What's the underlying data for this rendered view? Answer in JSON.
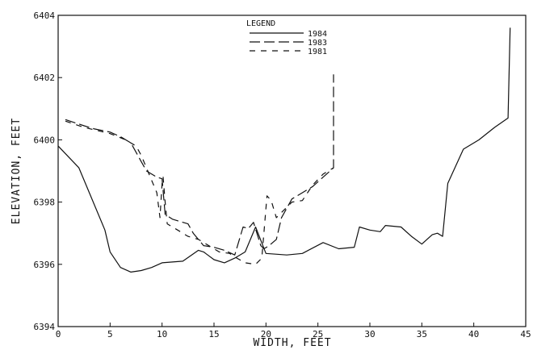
{
  "chart_data": {
    "type": "line",
    "title": "",
    "xlabel": "WIDTH, FEET",
    "ylabel": "ELEVATION, FEET",
    "xlim": [
      0,
      45
    ],
    "ylim": [
      6394,
      6404
    ],
    "xticks": [
      0,
      5,
      10,
      15,
      20,
      25,
      30,
      35,
      40,
      45
    ],
    "yticks": [
      6394,
      6396,
      6398,
      6400,
      6402,
      6404
    ],
    "grid": false,
    "legend": {
      "title": "LEGEND",
      "placement": "top-center"
    },
    "series": [
      {
        "name": "1984",
        "dash": "solid",
        "points": [
          [
            0.0,
            6399.8
          ],
          [
            2.0,
            6399.1
          ],
          [
            3.0,
            6398.3
          ],
          [
            4.5,
            6397.1
          ],
          [
            5.0,
            6396.4
          ],
          [
            6.0,
            6395.9
          ],
          [
            7.0,
            6395.75
          ],
          [
            8.0,
            6395.8
          ],
          [
            9.0,
            6395.9
          ],
          [
            10.0,
            6396.05
          ],
          [
            12.0,
            6396.1
          ],
          [
            13.5,
            6396.45
          ],
          [
            14.0,
            6396.4
          ],
          [
            15.0,
            6396.15
          ],
          [
            16.0,
            6396.05
          ],
          [
            17.0,
            6396.2
          ],
          [
            18.0,
            6396.4
          ],
          [
            19.0,
            6397.2
          ],
          [
            20.0,
            6396.35
          ],
          [
            22.0,
            6396.3
          ],
          [
            23.5,
            6396.35
          ],
          [
            25.5,
            6396.7
          ],
          [
            27.0,
            6396.5
          ],
          [
            28.5,
            6396.55
          ],
          [
            29.0,
            6397.2
          ],
          [
            30.0,
            6397.1
          ],
          [
            31.0,
            6397.05
          ],
          [
            31.5,
            6397.25
          ],
          [
            33.0,
            6397.2
          ],
          [
            34.0,
            6396.9
          ],
          [
            35.0,
            6396.65
          ],
          [
            36.0,
            6396.95
          ],
          [
            36.5,
            6397.0
          ],
          [
            37.0,
            6396.9
          ],
          [
            37.5,
            6398.6
          ],
          [
            39.0,
            6399.7
          ],
          [
            40.5,
            6400.0
          ],
          [
            42.0,
            6400.4
          ],
          [
            43.3,
            6400.7
          ],
          [
            43.5,
            6403.6
          ]
        ]
      },
      {
        "name": "1983",
        "dash": "long",
        "points": [
          [
            0.7,
            6400.65
          ],
          [
            2.5,
            6400.45
          ],
          [
            3.5,
            6400.35
          ],
          [
            5.0,
            6400.25
          ],
          [
            6.0,
            6400.1
          ],
          [
            7.0,
            6399.9
          ],
          [
            7.5,
            6399.6
          ],
          [
            8.0,
            6399.3
          ],
          [
            8.5,
            6399.0
          ],
          [
            9.5,
            6398.8
          ],
          [
            10.0,
            6398.75
          ],
          [
            10.3,
            6397.6
          ],
          [
            11.0,
            6397.45
          ],
          [
            12.0,
            6397.35
          ],
          [
            12.5,
            6397.3
          ],
          [
            13.0,
            6397.0
          ],
          [
            14.0,
            6396.6
          ],
          [
            15.0,
            6396.55
          ],
          [
            16.0,
            6396.45
          ],
          [
            17.0,
            6396.3
          ],
          [
            17.8,
            6397.2
          ],
          [
            18.3,
            6397.15
          ],
          [
            18.8,
            6397.35
          ],
          [
            19.5,
            6396.6
          ],
          [
            19.8,
            6396.5
          ],
          [
            20.3,
            6396.6
          ],
          [
            21.0,
            6396.8
          ],
          [
            21.5,
            6397.5
          ],
          [
            22.5,
            6398.1
          ],
          [
            23.5,
            6398.3
          ],
          [
            24.5,
            6398.5
          ],
          [
            25.5,
            6398.8
          ],
          [
            26.5,
            6399.1
          ],
          [
            26.5,
            6402.1
          ]
        ]
      },
      {
        "name": "1981",
        "dash": "dash",
        "points": [
          [
            0.7,
            6400.6
          ],
          [
            2.5,
            6400.4
          ],
          [
            5.0,
            6400.2
          ],
          [
            6.5,
            6400.0
          ],
          [
            7.5,
            6399.8
          ],
          [
            8.0,
            6399.5
          ],
          [
            9.5,
            6398.3
          ],
          [
            9.8,
            6397.5
          ],
          [
            10.0,
            6398.6
          ],
          [
            10.1,
            6398.8
          ],
          [
            10.3,
            6398.0
          ],
          [
            10.5,
            6397.3
          ],
          [
            11.5,
            6397.1
          ],
          [
            12.5,
            6396.9
          ],
          [
            13.5,
            6396.8
          ],
          [
            14.5,
            6396.6
          ],
          [
            15.5,
            6396.4
          ],
          [
            16.5,
            6396.35
          ],
          [
            17.2,
            6396.2
          ],
          [
            18.0,
            6396.05
          ],
          [
            19.0,
            6396.0
          ],
          [
            19.6,
            6396.2
          ],
          [
            20.1,
            6398.2
          ],
          [
            20.5,
            6398.05
          ],
          [
            21.0,
            6397.5
          ],
          [
            22.5,
            6398.0
          ],
          [
            23.5,
            6398.05
          ],
          [
            24.5,
            6398.55
          ],
          [
            25.5,
            6398.9
          ],
          [
            26.5,
            6399.1
          ]
        ]
      }
    ]
  }
}
